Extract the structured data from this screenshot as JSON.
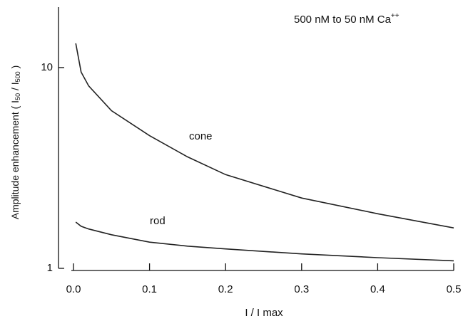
{
  "chart_data": {
    "type": "line",
    "log_y": true,
    "annotation": "500 nM  to  50 nM Ca",
    "annotation_superscript": "++",
    "x_label": "I / I max",
    "y_label": [
      "Amplitude enhancement  ( I",
      "50",
      " / I",
      "500",
      " )"
    ],
    "x": [
      0.003,
      0.01,
      0.02,
      0.05,
      0.1,
      0.15,
      0.2,
      0.3,
      0.4,
      0.5
    ],
    "series": [
      {
        "name": "cone",
        "color": "#222222",
        "values": [
          13.2,
          9.5,
          8.1,
          6.1,
          4.58,
          3.59,
          2.93,
          2.24,
          1.87,
          1.59
        ]
      },
      {
        "name": "rod",
        "color": "#222222",
        "values": [
          1.7,
          1.62,
          1.57,
          1.47,
          1.35,
          1.29,
          1.25,
          1.18,
          1.13,
          1.09
        ]
      }
    ],
    "xlim": [
      0,
      0.5
    ],
    "xticks": [
      {
        "value": 0,
        "label": "0.0"
      },
      0.1,
      0.2,
      0.3,
      0.4,
      0.5
    ],
    "ylim": [
      1,
      20
    ],
    "yticks": [
      1,
      10
    ]
  }
}
